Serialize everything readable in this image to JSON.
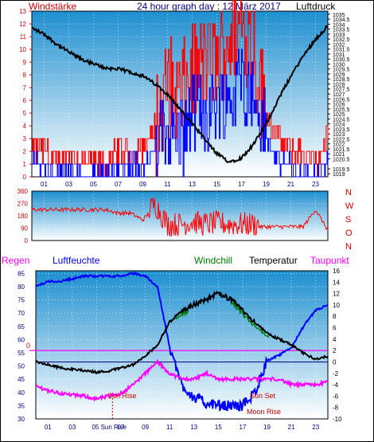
{
  "header": {
    "left_label": "Windstärke",
    "title": "24 hour graph day : 12 März 2017",
    "right_label": "Luftdruck"
  },
  "legend2": {
    "regen": "Regen",
    "luftfeuchte": "Luftfeuchte",
    "windchill": "Windchill",
    "temperatur": "Temperatur",
    "taupunkt": "Taupunkt"
  },
  "annotations": {
    "sunrise": "Sun Rise",
    "sunset": "Sun Set",
    "moonrise": "Moon Rise",
    "zero_marker": "0",
    "sunrise_axis": "05 Sun Rise"
  },
  "colors": {
    "wind": "#ff0000",
    "gust": "#0000ff",
    "pressure": "#000000",
    "direction": "#ff0000",
    "humidity": "#0000ff",
    "temperature": "#000000",
    "windchill": "#008000",
    "dewpoint": "#ff00ff",
    "regen_label": "#ff00ff",
    "luftfeuchte_label": "#0000ff",
    "windchill_label": "#008000",
    "axis_red": "#cc0000",
    "axis_blue": "#000080",
    "sky_top": "#1e8fd0",
    "sky_bottom": "#ffffff"
  },
  "chart_data": [
    {
      "type": "line",
      "name": "wind-pressure",
      "x_hours": [
        0,
        1,
        2,
        3,
        4,
        5,
        6,
        7,
        8,
        9,
        10,
        11,
        12,
        13,
        14,
        15,
        16,
        17,
        18,
        19,
        20,
        21,
        22,
        23,
        24
      ],
      "x_tick_labels": [
        "01",
        "03",
        "05",
        "07",
        "09",
        "11",
        "13",
        "15",
        "17",
        "19",
        "21",
        "23"
      ],
      "left_axis": {
        "label": "Windstärke",
        "ylim": [
          0,
          13
        ],
        "ticks": [
          0,
          1,
          2,
          3,
          4,
          5,
          6,
          7,
          8,
          9,
          10,
          11,
          12,
          13
        ]
      },
      "right_axis": {
        "label": "Luftdruck",
        "ylim": [
          1018.7,
          1035.3
        ],
        "ticks": [
          "1019",
          "1019.5",
          "1020",
          "1020.5",
          "1021",
          "1021.5",
          "1022",
          "1022.5",
          "1023",
          "1023.5",
          "1024",
          "1024.5",
          "1025",
          "1025.5",
          "1026",
          "1026.5",
          "1027",
          "1027.5",
          "1028",
          "1028.5",
          "1029",
          "1029.5",
          "1030",
          "1030.5",
          "1031",
          "1031.5",
          "1032",
          "1032.5",
          "1033",
          "1033.5",
          "1034",
          "1034.5",
          "1035"
        ],
        "shown_ticks": [
          "1019",
          "1019.5",
          "1020.5",
          "1021",
          "1021.5",
          "1022",
          "1022.5",
          "1023",
          "1023.5",
          "1024",
          "1024.5",
          "1025",
          "1025.5",
          "1026",
          "1026.5",
          "1027",
          "1027.5",
          "1028",
          "1028.5",
          "1029",
          "1029.5",
          "1030",
          "1030.5",
          "1031",
          "1031.5",
          "1032",
          "1032.5",
          "1033",
          "1033.5",
          "1034",
          "1034.5",
          "1035"
        ]
      },
      "series": [
        {
          "name": "Luftdruck",
          "axis": "right",
          "values": [
            1033.6,
            1033.0,
            1032.0,
            1031.2,
            1030.5,
            1030.0,
            1029.6,
            1029.5,
            1029.2,
            1028.8,
            1028.0,
            1027.0,
            1025.5,
            1024.0,
            1022.5,
            1021.0,
            1020.2,
            1020.6,
            1022.0,
            1024.0,
            1026.5,
            1028.8,
            1030.8,
            1032.5,
            1033.8
          ]
        },
        {
          "name": "Wind",
          "axis": "left",
          "values": [
            2,
            2,
            1,
            2,
            1,
            1,
            1,
            2,
            2,
            2,
            4,
            7,
            6,
            8,
            9,
            9,
            11,
            12,
            10,
            5,
            3,
            2,
            2,
            1,
            3
          ]
        },
        {
          "name": "Gust",
          "axis": "left",
          "values": [
            1,
            1,
            0,
            1,
            0,
            0,
            0,
            1,
            1,
            1,
            2,
            4,
            3,
            5,
            5,
            6,
            6,
            8,
            6,
            3,
            1,
            1,
            0,
            0,
            1
          ]
        }
      ]
    },
    {
      "type": "line",
      "name": "wind-direction",
      "x_hours": [
        0,
        1,
        2,
        3,
        4,
        5,
        6,
        7,
        8,
        9,
        10,
        11,
        12,
        13,
        14,
        15,
        16,
        17,
        18,
        19,
        20,
        21,
        22,
        23,
        24
      ],
      "left_axis": {
        "ylim": [
          0,
          360
        ],
        "ticks": [
          0,
          90,
          180,
          270,
          360
        ]
      },
      "right_axis": {
        "ticks": [
          "N",
          "W",
          "S",
          "O",
          "N"
        ]
      },
      "series": [
        {
          "name": "Windrichtung",
          "values": [
            225,
            225,
            225,
            225,
            225,
            225,
            225,
            200,
            200,
            150,
            250,
            100,
            100,
            120,
            100,
            110,
            100,
            100,
            100,
            100,
            100,
            100,
            100,
            225,
            75
          ]
        }
      ]
    },
    {
      "type": "line",
      "name": "temp-humidity",
      "x_hours": [
        0,
        1,
        2,
        3,
        4,
        5,
        6,
        7,
        8,
        9,
        10,
        11,
        12,
        13,
        14,
        15,
        16,
        17,
        18,
        19,
        20,
        21,
        22,
        23,
        24
      ],
      "left_axis": {
        "ylim": [
          30,
          86
        ],
        "ticks": [
          30,
          35,
          40,
          45,
          50,
          55,
          60,
          65,
          70,
          75,
          80,
          85
        ]
      },
      "right_axis": {
        "ylim": [
          -10,
          16
        ],
        "ticks": [
          -10,
          -8,
          -6,
          -4,
          -2,
          0,
          2,
          4,
          6,
          8,
          10,
          12,
          14,
          16
        ]
      },
      "series": [
        {
          "name": "Luftfeuchte",
          "axis": "left",
          "values": [
            80,
            82,
            82,
            83,
            84,
            84,
            84,
            84,
            85,
            84,
            80,
            57,
            43,
            38,
            36,
            35,
            35,
            35,
            40,
            52,
            54,
            57,
            65,
            71,
            73
          ]
        },
        {
          "name": "Temperatur",
          "axis": "right",
          "values": [
            0,
            -0.5,
            -1.0,
            -1.3,
            -1.5,
            -1.8,
            -1.6,
            -1.0,
            -0.5,
            1.0,
            3,
            7,
            9,
            10,
            11,
            12,
            11,
            9,
            7,
            5,
            4,
            3,
            1.5,
            0.5,
            1.0
          ]
        },
        {
          "name": "Windchill",
          "axis": "right",
          "values": [
            null,
            null,
            null,
            null,
            null,
            null,
            null,
            null,
            null,
            null,
            null,
            null,
            6.5,
            null,
            null,
            null,
            8,
            8,
            6,
            5,
            null,
            null,
            null,
            null,
            null
          ]
        },
        {
          "name": "Taupunkt",
          "axis": "right",
          "values": [
            -4.2,
            -5,
            -5.5,
            -5.8,
            -6,
            -6.5,
            -6,
            -5.5,
            -4,
            -2,
            0,
            -2,
            -3,
            -3,
            -2,
            -3,
            -3,
            -3,
            -3,
            -3,
            -3,
            -4,
            -4,
            -4,
            -3.5
          ]
        }
      ]
    }
  ]
}
